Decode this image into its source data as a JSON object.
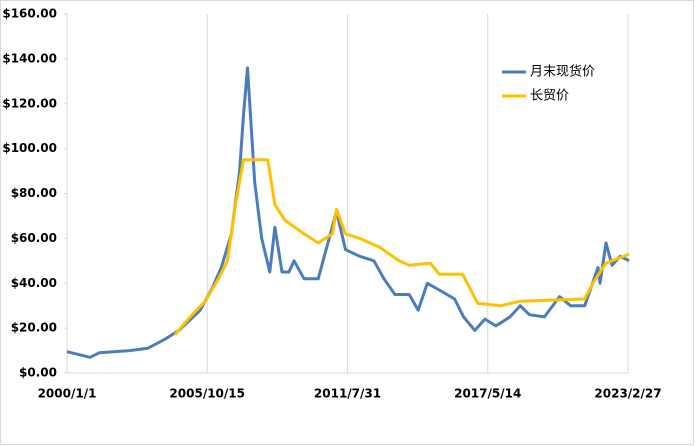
{
  "chart_data": {
    "type": "line",
    "xlim": [
      "2000/1/1",
      "2023/2/27"
    ],
    "xticks": [
      "2000/1/1",
      "2005/10/15",
      "2011/7/31",
      "2017/5/14",
      "2023/2/27"
    ],
    "ylim": [
      0,
      160
    ],
    "yticks": [
      {
        "value": 0,
        "label": "$0.00"
      },
      {
        "value": 20,
        "label": "$20.00"
      },
      {
        "value": 40,
        "label": "$40.00"
      },
      {
        "value": 60,
        "label": "$60.00"
      },
      {
        "value": 80,
        "label": "$80.00"
      },
      {
        "value": 100,
        "label": "$100.00"
      },
      {
        "value": 120,
        "label": "$120.00"
      },
      {
        "value": 140,
        "label": "$140.00"
      },
      {
        "value": 160,
        "label": "$160.00"
      }
    ],
    "grid": "x",
    "legend": "upper right",
    "series": [
      {
        "name": "月末现货价",
        "color": "#4a7ebb",
        "x": [
          "2000/1/1",
          "2000/12/15",
          "2001/5/1",
          "2002/8/1",
          "2003/5/1",
          "2004/1/15",
          "2004/8/15",
          "2005/7/1",
          "2006/1/1",
          "2006/5/15",
          "2006/10/15",
          "2007/2/15",
          "2007/4/15",
          "2007/6/15",
          "2007/10/1",
          "2008/1/15",
          "2008/5/15",
          "2008/8/1",
          "2008/11/15",
          "2009/3/1",
          "2009/5/15",
          "2009/10/15",
          "2010/5/15",
          "2010/8/15",
          "2011/2/15",
          "2011/7/1",
          "2012/2/1",
          "2012/9/1",
          "2013/2/1",
          "2013/7/15",
          "2014/2/15",
          "2014/7/1",
          "2014/11/15",
          "2015/5/15",
          "2016/1/1",
          "2016/5/15",
          "2016/11/1",
          "2017/4/1",
          "2017/9/15",
          "2018/4/15",
          "2018/9/15",
          "2019/2/1",
          "2019/9/15",
          "2020/5/1",
          "2020/10/15",
          "2021/5/15",
          "2021/12/1",
          "2022/1/1",
          "2022/4/1",
          "2022/7/1",
          "2022/11/1",
          "2023/3/15"
        ],
        "values": [
          9.5,
          7,
          9,
          10,
          11,
          15,
          19,
          28,
          38,
          47,
          62,
          90,
          115,
          136,
          85,
          60,
          45,
          65,
          45,
          45,
          50,
          42,
          42,
          52,
          72,
          55,
          52,
          50,
          42,
          35,
          35,
          28,
          40,
          37,
          33,
          25,
          19,
          24,
          21,
          25,
          30,
          26,
          25,
          34,
          30,
          30,
          47,
          40,
          58,
          48,
          52,
          50
        ]
      },
      {
        "name": "长贸价",
        "color": "#ffc000",
        "x": [
          "2004/6/15",
          "2005/2/1",
          "2005/9/15",
          "2006/4/1",
          "2006/8/15",
          "2006/12/15",
          "2007/4/15",
          "2008/4/15",
          "2008/8/1",
          "2009/1/1",
          "2009/10/15",
          "2010/5/15",
          "2010/12/15",
          "2011/2/15",
          "2011/7/1",
          "2012/2/1",
          "2012/12/1",
          "2013/9/15",
          "2014/2/15",
          "2015/1/1",
          "2015/5/15",
          "2016/5/1",
          "2016/12/15",
          "2017/12/1",
          "2018/9/15",
          "2021/5/15",
          "2021/9/15",
          "2022/4/1",
          "2023/3/15"
        ],
        "values": [
          17,
          25,
          32,
          42,
          50,
          75,
          95,
          95,
          75,
          68,
          62,
          58,
          62,
          73,
          62,
          60,
          56,
          50,
          48,
          49,
          44,
          44,
          31,
          30,
          32,
          33,
          40,
          49,
          53
        ]
      }
    ]
  }
}
